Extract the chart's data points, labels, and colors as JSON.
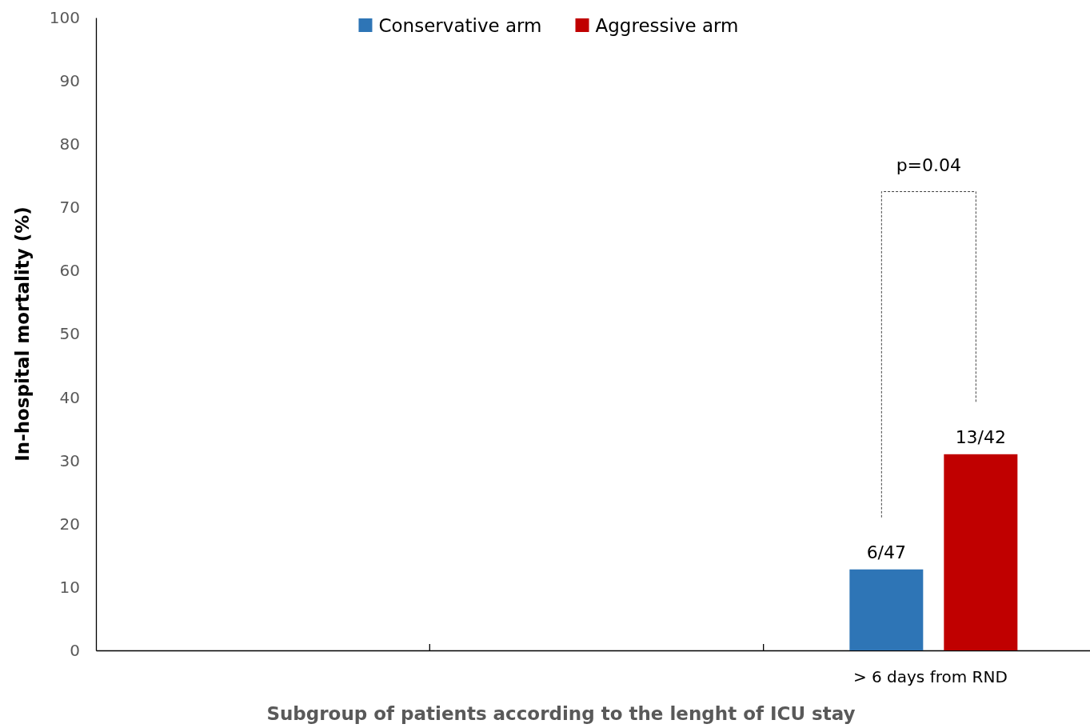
{
  "chart_data": {
    "type": "bar",
    "xlabel": "Subgroup of patients according to the lenght of ICU stay",
    "ylabel": "In-hospital mortality (%)",
    "categories": [
      null,
      null,
      "> 6 days from RND"
    ],
    "series": [
      {
        "name": "Conservative arm",
        "color": "#2e75b6",
        "values": [
          null,
          null,
          12.8
        ],
        "value_labels": [
          null,
          null,
          "6/47"
        ]
      },
      {
        "name": "Aggressive arm",
        "color": "#c00000",
        "values": [
          null,
          null,
          31
        ],
        "value_labels": [
          null,
          null,
          "13/42"
        ]
      }
    ],
    "ylim": [
      0,
      100
    ],
    "yticks": [
      0,
      10,
      20,
      30,
      40,
      50,
      60,
      70,
      80,
      90,
      100
    ],
    "grid": false,
    "legend": "top",
    "annotations": [
      "p=0.04"
    ]
  }
}
